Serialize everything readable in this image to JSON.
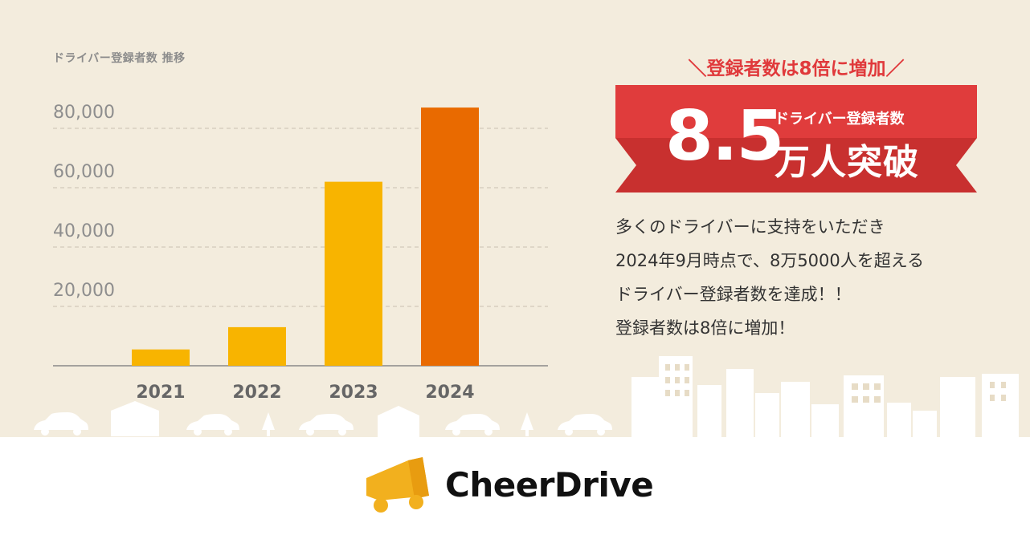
{
  "chart_data": {
    "type": "bar",
    "title": "ドライバー登録者数 推移",
    "categories": [
      "2021",
      "2022",
      "2023",
      "2024"
    ],
    "values": [
      5500,
      13000,
      62000,
      87000
    ],
    "y_ticks": [
      "20,000",
      "40,000",
      "60,000",
      "80,000"
    ],
    "ylim": [
      0,
      90000
    ],
    "grid": true,
    "colors": [
      "#f8b400",
      "#f8b400",
      "#f8b400",
      "#e96a00"
    ]
  },
  "headline": "＼登録者数は8倍に増加／",
  "ribbon": {
    "big_number": "8.5",
    "sub_label": "ドライバー登録者数",
    "main_label": "万人突破"
  },
  "description": [
    "多くのドライバーに支持をいただき",
    "2024年9月時点で、8万5000人を超える",
    "ドライバー登録者数を達成！！",
    "登録者数は8倍に増加！"
  ],
  "logo": {
    "text": "CheerDrive",
    "icon": "megaphone-truck-icon",
    "color": "#f2b01e"
  }
}
